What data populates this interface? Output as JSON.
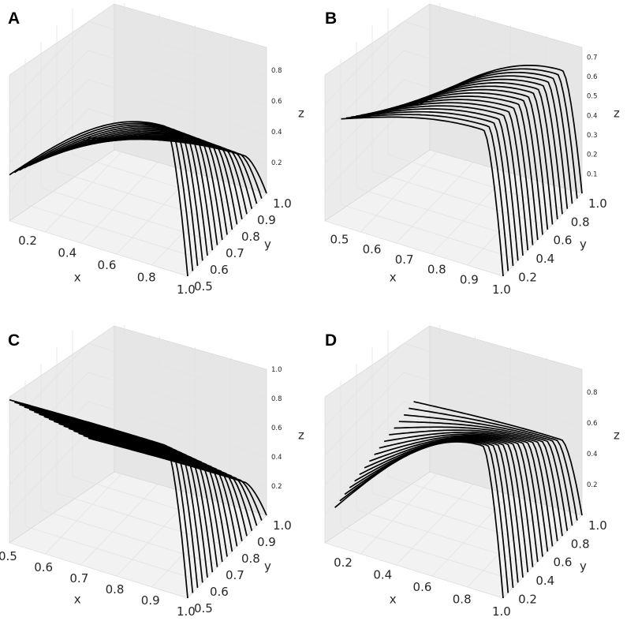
{
  "chart_data": [
    {
      "panel": "A",
      "type": "line3d",
      "xlabel": "x",
      "ylabel": "y",
      "zlabel": "z",
      "xticks": [
        "0.2",
        "0.4",
        "0.6",
        "0.8",
        "1.0"
      ],
      "yticks": [
        "0.5",
        "0.6",
        "0.7",
        "0.8",
        "0.9",
        "1.0"
      ],
      "zticks": [
        "0.2",
        "0.4",
        "0.6",
        "0.8"
      ],
      "xlim": [
        0.1,
        1.0
      ],
      "ylim": [
        0.5,
        1.0
      ],
      "zlim": [
        0.0,
        0.95
      ],
      "grid": true,
      "curves": 17,
      "y_range": [
        0.5,
        1.0
      ],
      "x_start": 0.1,
      "x_end": 1.0,
      "z_start_range": [
        0.3,
        0.0
      ],
      "z_peak_range": [
        0.93,
        0.2
      ],
      "z_end": 0.0
    },
    {
      "panel": "B",
      "type": "line3d",
      "xlabel": "x",
      "ylabel": "y",
      "zlabel": "z",
      "xticks": [
        "0.5",
        "0.6",
        "0.7",
        "0.8",
        "0.9",
        "1.0"
      ],
      "yticks": [
        "0.2",
        "0.4",
        "0.6",
        "0.8",
        "1.0"
      ],
      "zticks": [
        "0.1",
        "0.2",
        "0.3",
        "0.4",
        "0.5",
        "0.6",
        "0.7"
      ],
      "xlim": [
        0.45,
        1.0
      ],
      "ylim": [
        0.1,
        1.0
      ],
      "zlim": [
        0.0,
        0.75
      ],
      "grid": true,
      "curves": 17,
      "y_range": [
        0.1,
        1.0
      ],
      "x_start": 0.5,
      "x_end": 1.0,
      "z_start_range": [
        0.55,
        0.2
      ],
      "z_peak_range": [
        0.72,
        0.6
      ],
      "z_end": 0.0
    },
    {
      "panel": "C",
      "type": "line3d",
      "xlabel": "x",
      "ylabel": "y",
      "zlabel": "z",
      "xticks": [
        "0.5",
        "0.6",
        "0.7",
        "0.8",
        "0.9",
        "1.0"
      ],
      "yticks": [
        "0.5",
        "0.6",
        "0.7",
        "0.8",
        "0.9",
        "1.0"
      ],
      "zticks": [
        "0.2",
        "0.4",
        "0.6",
        "0.8",
        "1.0"
      ],
      "xlim": [
        0.5,
        1.0
      ],
      "ylim": [
        0.5,
        1.0
      ],
      "zlim": [
        0.0,
        1.0
      ],
      "grid": true,
      "curves": 17,
      "y_range": [
        0.5,
        1.0
      ],
      "x_start": 0.5,
      "x_end": 1.0,
      "z_start_range": [
        0.98,
        0.15
      ],
      "z_peak_range": [
        1.0,
        0.18
      ],
      "z_end": 0.0
    },
    {
      "panel": "D",
      "type": "line3d",
      "xlabel": "x",
      "ylabel": "y",
      "zlabel": "z",
      "xticks": [
        "0.2",
        "0.4",
        "0.6",
        "0.8",
        "1.0"
      ],
      "yticks": [
        "0.2",
        "0.4",
        "0.6",
        "0.8",
        "1.0"
      ],
      "zticks": [
        "0.2",
        "0.4",
        "0.6",
        "0.8"
      ],
      "xlim": [
        0.1,
        1.0
      ],
      "ylim": [
        0.1,
        1.0
      ],
      "zlim": [
        0.0,
        0.95
      ],
      "grid": true,
      "curves": 17,
      "y_range": [
        0.1,
        1.0
      ],
      "x_start": 0.15,
      "x_end": 1.0,
      "z_start_range": [
        0.25,
        0.4
      ],
      "z_peak_range": [
        0.95,
        0.45
      ],
      "z_end": 0.0
    }
  ]
}
